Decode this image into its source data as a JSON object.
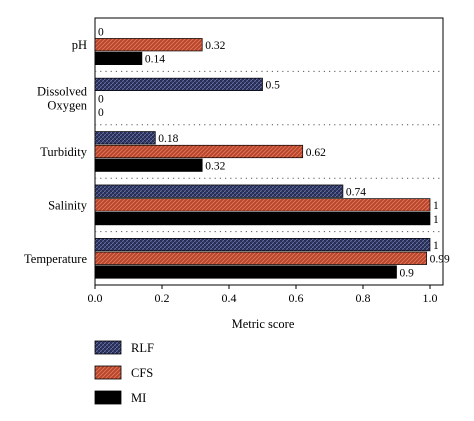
{
  "chart_data": {
    "type": "bar",
    "orientation": "horizontal",
    "title": "",
    "xlabel": "Metric score",
    "ylabel": "",
    "xlim": [
      0,
      1.05
    ],
    "x_ticks": [
      "0.0",
      "0.2",
      "0.4",
      "0.6",
      "0.8",
      "1.0"
    ],
    "grid": false,
    "legend_position": "bottom-left",
    "categories": [
      "pH",
      "Dissolved Oxygen",
      "Turbidity",
      "Salinity",
      "Temperature"
    ],
    "category_lines": {
      "Dissolved Oxygen": [
        "Dissolved",
        "Oxygen"
      ]
    },
    "series": [
      {
        "name": "RLF",
        "pattern": "crosshatch",
        "color": "#2e3560",
        "values": [
          0,
          0.5,
          0.18,
          0.74,
          1
        ]
      },
      {
        "name": "CFS",
        "pattern": "diagonal",
        "color": "#b8442a",
        "values": [
          0.32,
          0,
          0.62,
          1,
          0.99
        ]
      },
      {
        "name": "MI",
        "pattern": "solid",
        "color": "#000000",
        "values": [
          0.14,
          0,
          0.32,
          1,
          0.9
        ]
      }
    ],
    "value_labels": [
      [
        "0",
        "0.5",
        "0.18",
        "0.74",
        "1"
      ],
      [
        "0.32",
        "0",
        "0.62",
        "1",
        "0.99"
      ],
      [
        "0.14",
        "0",
        "0.32",
        "1",
        "0.9"
      ]
    ]
  }
}
